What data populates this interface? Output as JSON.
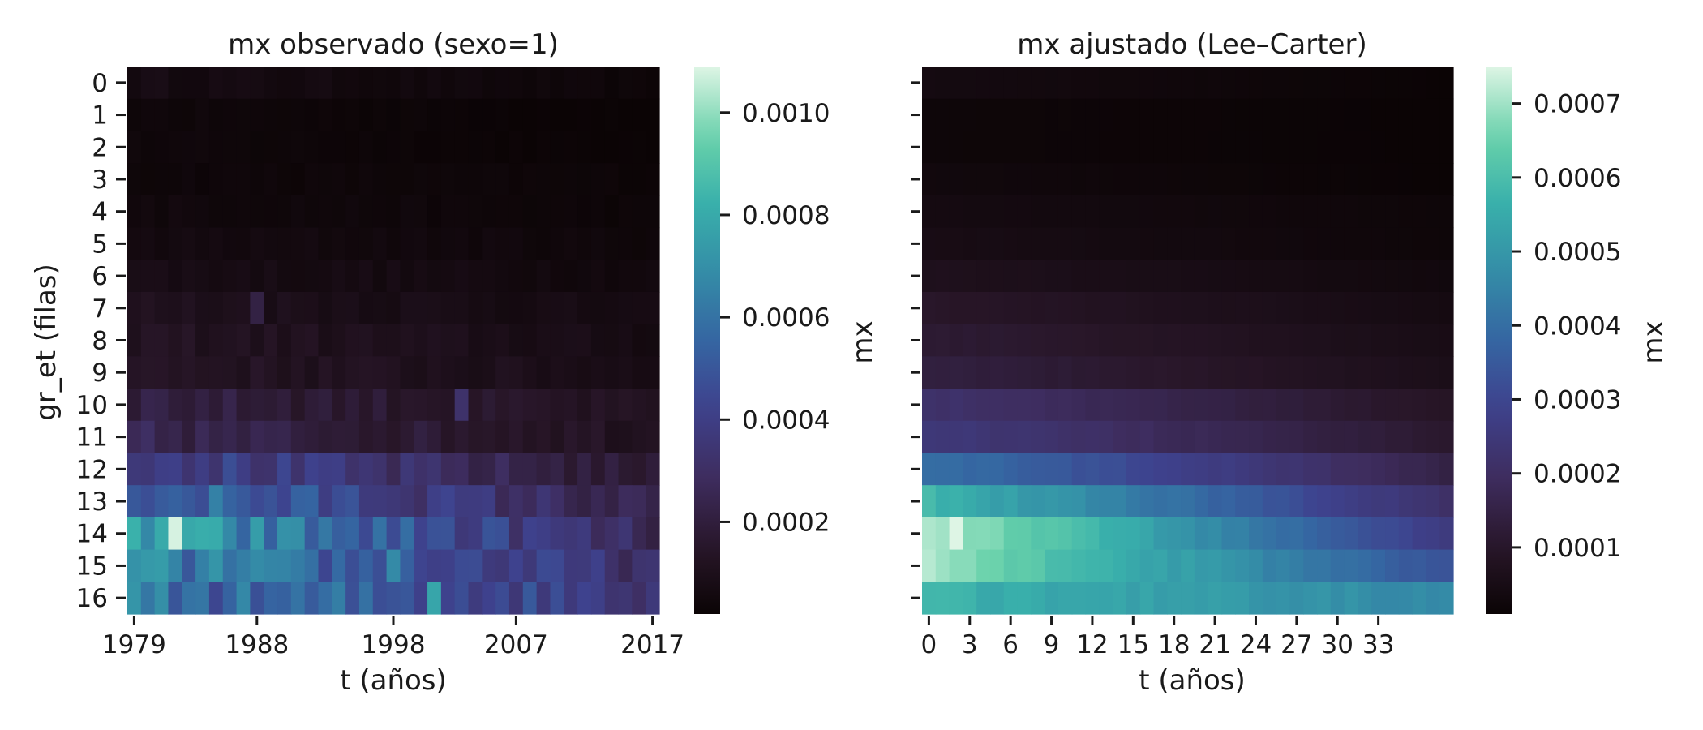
{
  "chart_data": [
    {
      "type": "heatmap",
      "title": "mx observado (sexo=1)",
      "xlabel": "t (años)",
      "ylabel": "gr_et (filas)",
      "rows": [
        0,
        1,
        2,
        3,
        4,
        5,
        6,
        7,
        8,
        9,
        10,
        11,
        12,
        13,
        14,
        15,
        16
      ],
      "x_tick_labels": [
        "1979",
        "1988",
        "1998",
        "2007",
        "2017"
      ],
      "x_tick_positions": [
        0,
        9,
        19,
        28,
        38
      ],
      "n_cols": 39,
      "colorbar": {
        "label": "mx",
        "min": 2e-05,
        "max": 0.00109,
        "tick_labels": [
          "0.0002",
          "0.0004",
          "0.0006",
          "0.0008",
          "0.0010"
        ],
        "ticks": [
          0.0002,
          0.0004,
          0.0006,
          0.0008,
          0.001
        ]
      },
      "row_mean_start": [
        7e-05,
        4e-05,
        4e-05,
        4e-05,
        5e-05,
        6e-05,
        8e-05,
        0.00011,
        0.00013,
        0.00014,
        0.00022,
        0.00025,
        0.00045,
        0.00058,
        0.00075,
        0.00065,
        0.0006
      ],
      "row_mean_end": [
        3e-05,
        2e-05,
        2e-05,
        3e-05,
        3e-05,
        4e-05,
        5e-05,
        6e-05,
        7e-05,
        8e-05,
        0.00011,
        0.00012,
        0.00016,
        0.00022,
        0.00026,
        0.00031,
        0.00038
      ],
      "noise": 0.22,
      "highlights": [
        {
          "row": 14,
          "col": 3,
          "value": 0.00108
        },
        {
          "row": 14,
          "col": 2,
          "value": 0.0008
        },
        {
          "row": 13,
          "col": 6,
          "value": 0.00065
        },
        {
          "row": 15,
          "col": 6,
          "value": 0.00072
        },
        {
          "row": 15,
          "col": 19,
          "value": 0.00068
        },
        {
          "row": 16,
          "col": 22,
          "value": 0.00078
        },
        {
          "row": 16,
          "col": 15,
          "value": 0.00064
        },
        {
          "row": 15,
          "col": 3,
          "value": 0.00066
        },
        {
          "row": 10,
          "col": 24,
          "value": 0.00032
        },
        {
          "row": 7,
          "col": 9,
          "value": 0.00022
        }
      ]
    },
    {
      "type": "heatmap",
      "title": "mx ajustado (Lee–Carter)",
      "xlabel": "t (años)",
      "ylabel": "",
      "rows": [
        0,
        1,
        2,
        3,
        4,
        5,
        6,
        7,
        8,
        9,
        10,
        11,
        12,
        13,
        14,
        15,
        16
      ],
      "x_tick_labels": [
        "0",
        "3",
        "6",
        "9",
        "12",
        "15",
        "18",
        "21",
        "24",
        "27",
        "30",
        "33"
      ],
      "x_tick_positions": [
        0,
        3,
        6,
        9,
        12,
        15,
        18,
        21,
        24,
        27,
        30,
        33
      ],
      "n_cols": 39,
      "colorbar": {
        "label": "mx",
        "min": 1e-05,
        "max": 0.00075,
        "tick_labels": [
          "0.0001",
          "0.0002",
          "0.0003",
          "0.0004",
          "0.0005",
          "0.0006",
          "0.0007"
        ],
        "ticks": [
          0.0001,
          0.0002,
          0.0003,
          0.0004,
          0.0005,
          0.0006,
          0.0007
        ]
      },
      "row_mean_start": [
        4e-05,
        2e-05,
        2e-05,
        3e-05,
        4e-05,
        5e-05,
        7e-05,
        0.0001,
        0.00012,
        0.00014,
        0.00022,
        0.00025,
        0.00041,
        0.00058,
        0.00072,
        0.0007,
        0.00057
      ],
      "row_mean_end": [
        1e-05,
        1e-05,
        1e-05,
        1e-05,
        2e-05,
        2e-05,
        3e-05,
        4e-05,
        5e-05,
        6e-05,
        9e-05,
        0.00011,
        0.00015,
        0.00021,
        0.00026,
        0.00033,
        0.00046
      ],
      "noise": 0.03,
      "highlights": [
        {
          "row": 14,
          "col": 2,
          "value": 0.00075
        },
        {
          "row": 14,
          "col": 0,
          "value": 0.00071
        },
        {
          "row": 15,
          "col": 2,
          "value": 0.00068
        }
      ]
    }
  ]
}
